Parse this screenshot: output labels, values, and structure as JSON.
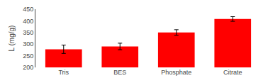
{
  "chart_data": {
    "type": "bar",
    "categories": [
      "Tris",
      "BES",
      "Phosphate",
      "Citrate"
    ],
    "values": [
      278,
      290,
      350,
      408
    ],
    "errors": [
      18,
      14,
      12,
      10
    ],
    "color": "#ff0000",
    "ylabel": "L (mg/g)",
    "ylim": [
      200,
      450
    ],
    "yticks": [
      200,
      250,
      300,
      350,
      400,
      450
    ],
    "grid": false
  }
}
